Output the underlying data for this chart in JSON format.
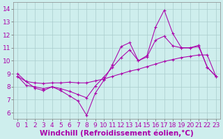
{
  "xlabel": "Windchill (Refroidissement éolien,°C)",
  "background_color": "#ceeeed",
  "grid_color": "#aacccc",
  "line_color": "#aa00aa",
  "xlim_min": -0.5,
  "xlim_max": 23.5,
  "ylim_min": 5.5,
  "ylim_max": 14.5,
  "xticks": [
    0,
    1,
    2,
    3,
    4,
    5,
    6,
    7,
    8,
    9,
    10,
    11,
    12,
    13,
    14,
    15,
    16,
    17,
    18,
    19,
    20,
    21,
    22,
    23
  ],
  "yticks": [
    6,
    7,
    8,
    9,
    10,
    11,
    12,
    13,
    14
  ],
  "hours": [
    0,
    1,
    2,
    3,
    4,
    5,
    6,
    7,
    8,
    9,
    10,
    11,
    12,
    13,
    14,
    15,
    16,
    17,
    18,
    19,
    20,
    21,
    22,
    23
  ],
  "values_main": [
    9.0,
    8.4,
    7.9,
    7.7,
    8.0,
    7.7,
    7.3,
    6.9,
    5.8,
    7.5,
    8.5,
    9.7,
    11.1,
    11.4,
    10.0,
    10.4,
    12.6,
    13.9,
    12.1,
    11.0,
    11.0,
    11.2,
    9.5,
    8.8
  ],
  "values_trend1": [
    8.8,
    8.1,
    8.0,
    7.85,
    8.0,
    7.85,
    7.65,
    7.4,
    7.15,
    8.05,
    8.75,
    9.5,
    10.25,
    10.85,
    10.0,
    10.3,
    11.6,
    11.9,
    11.15,
    11.0,
    11.0,
    11.1,
    9.5,
    8.8
  ],
  "values_trend2": [
    8.8,
    8.4,
    8.3,
    8.25,
    8.3,
    8.3,
    8.35,
    8.3,
    8.3,
    8.45,
    8.6,
    8.8,
    9.0,
    9.2,
    9.35,
    9.55,
    9.75,
    9.95,
    10.1,
    10.25,
    10.35,
    10.45,
    10.45,
    8.8
  ],
  "tick_fontsize": 6.5,
  "xlabel_fontsize": 7.5
}
